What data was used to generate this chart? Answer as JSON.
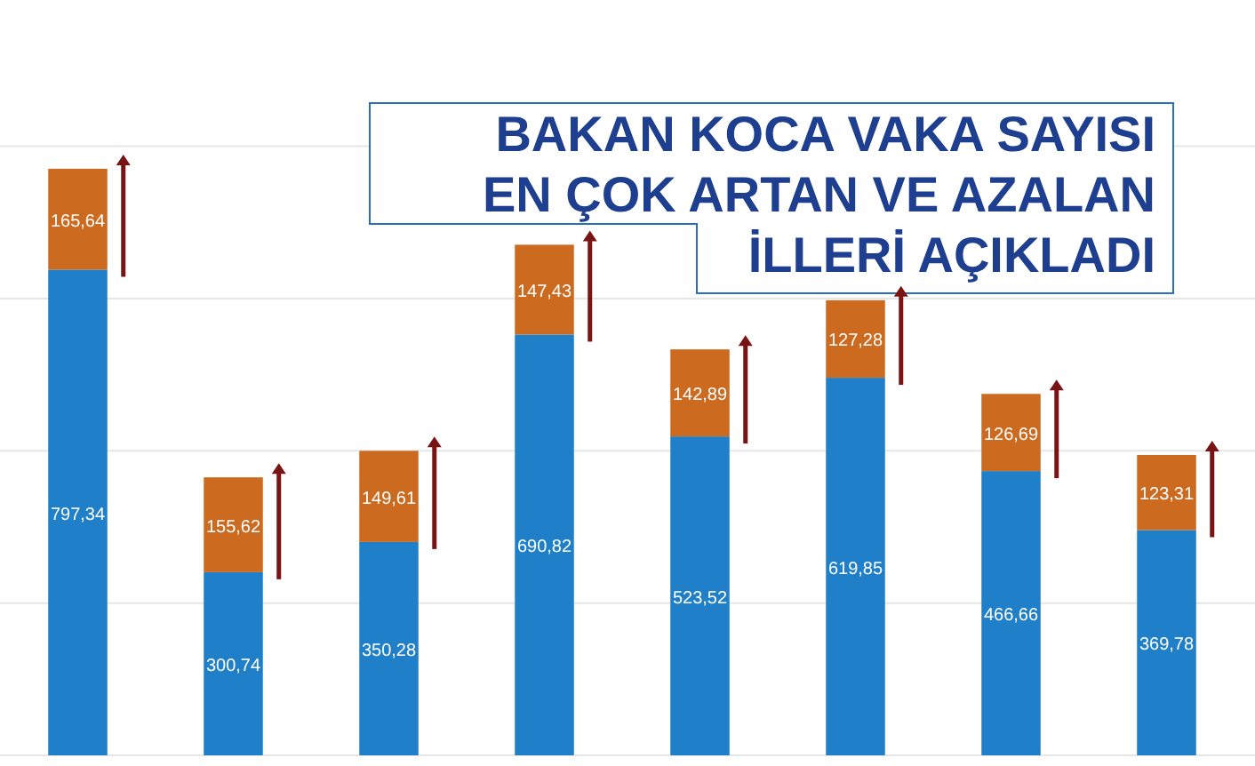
{
  "chart_data": {
    "type": "bar",
    "title": "BAKAN KOCA VAKA SAYISI EN ÇOK ARTAN VE AZALAN İLLERİ AÇIKLADI",
    "categories": [
      null,
      null,
      null,
      null,
      null,
      null,
      null,
      null
    ],
    "stacked": true,
    "ylim": [
      0,
      1240
    ],
    "yticks": [
      {
        "value": 0,
        "label": null
      },
      {
        "value": 250,
        "label": null
      },
      {
        "value": 500,
        "label": null
      },
      {
        "value": 750,
        "label": null
      },
      {
        "value": 1000,
        "label": null
      }
    ],
    "grid": "y",
    "series": [
      {
        "color": "#1f7fc8",
        "values": [
          797.34,
          300.74,
          350.28,
          690.82,
          523.52,
          619.85,
          466.66,
          369.78
        ],
        "value_labels": [
          "797,34",
          "300,74",
          "350,28",
          "690,82",
          "523,52",
          "619,85",
          "466,66",
          "369,78"
        ]
      },
      {
        "color": "#cc6a1f",
        "values": [
          165.64,
          155.62,
          149.61,
          147.43,
          142.89,
          127.28,
          126.69,
          123.31
        ],
        "value_labels": [
          "165,64",
          "155,62",
          "149,61",
          "147,43",
          "142,89",
          "127,28",
          "126,69",
          "123,31"
        ]
      }
    ]
  }
}
